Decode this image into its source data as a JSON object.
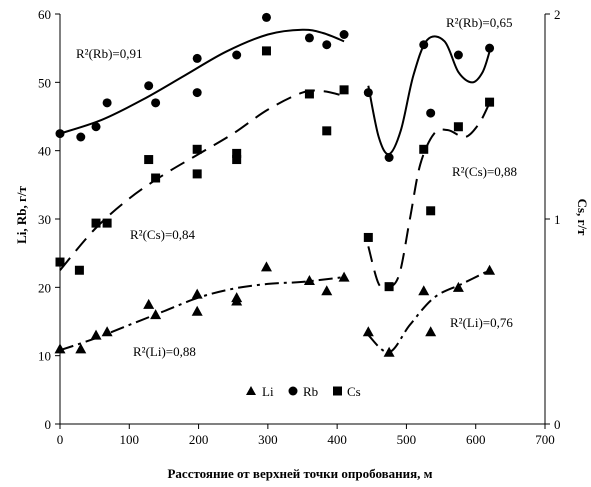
{
  "chart_data": {
    "type": "scatter",
    "xlabel": "Расстояние от верхней точки опробования, м",
    "ylabel_left": "Li, Rb, г/т",
    "ylabel_right": "Cs, г/т",
    "xlim": [
      0,
      700
    ],
    "ylim_left": [
      0,
      60
    ],
    "ylim_right": [
      0,
      2
    ],
    "x_ticks": [
      "0",
      "100",
      "200",
      "300",
      "400",
      "500",
      "600",
      "700"
    ],
    "y_left_ticks": [
      "0",
      "10",
      "20",
      "30",
      "40",
      "50",
      "60"
    ],
    "y_right_ticks": [
      "0",
      "1",
      "2"
    ],
    "grid": false,
    "legend_position": "bottom",
    "series": [
      {
        "name": "Li",
        "marker": "triangle",
        "axis": "left",
        "points": [
          [
            0,
            11
          ],
          [
            30,
            11
          ],
          [
            52,
            13
          ],
          [
            68,
            13.5
          ],
          [
            128,
            17.5
          ],
          [
            138,
            16
          ],
          [
            198,
            19
          ],
          [
            198,
            16.5
          ],
          [
            255,
            18.5
          ],
          [
            255,
            18
          ],
          [
            298,
            23
          ],
          [
            360,
            21
          ],
          [
            385,
            19.5
          ],
          [
            410,
            21.5
          ],
          [
            445,
            13.5
          ],
          [
            475,
            10.5
          ],
          [
            525,
            19.5
          ],
          [
            535,
            13.5
          ],
          [
            575,
            20
          ],
          [
            620,
            22.5
          ]
        ]
      },
      {
        "name": "Rb",
        "marker": "circle",
        "axis": "left",
        "points": [
          [
            0,
            42.5
          ],
          [
            30,
            42
          ],
          [
            52,
            43.5
          ],
          [
            68,
            47
          ],
          [
            128,
            49.5
          ],
          [
            138,
            47
          ],
          [
            198,
            53.5
          ],
          [
            198,
            48.5
          ],
          [
            255,
            54
          ],
          [
            298,
            59.5
          ],
          [
            360,
            56.5
          ],
          [
            385,
            55.5
          ],
          [
            410,
            57
          ],
          [
            445,
            48.5
          ],
          [
            475,
            39
          ],
          [
            525,
            55.5
          ],
          [
            535,
            45.5
          ],
          [
            575,
            54
          ],
          [
            620,
            55
          ]
        ]
      },
      {
        "name": "Cs",
        "marker": "square",
        "axis": "right",
        "points": [
          [
            0,
            0.79
          ],
          [
            28,
            0.75
          ],
          [
            52,
            0.98
          ],
          [
            68,
            0.98
          ],
          [
            128,
            1.29
          ],
          [
            138,
            1.2
          ],
          [
            198,
            1.34
          ],
          [
            198,
            1.22
          ],
          [
            255,
            1.32
          ],
          [
            255,
            1.29
          ],
          [
            298,
            1.82
          ],
          [
            360,
            1.61
          ],
          [
            385,
            1.43
          ],
          [
            410,
            1.63
          ],
          [
            445,
            0.91
          ],
          [
            475,
            0.67
          ],
          [
            525,
            1.34
          ],
          [
            535,
            1.04
          ],
          [
            575,
            1.45
          ],
          [
            620,
            1.57
          ]
        ]
      }
    ],
    "trendlines": [
      {
        "series": "Rb",
        "style": "solid",
        "r2_label": "R²(Rb)=0,91",
        "points": [
          [
            0,
            42.5
          ],
          [
            60,
            44.5
          ],
          [
            120,
            47.5
          ],
          [
            180,
            51
          ],
          [
            240,
            54.5
          ],
          [
            300,
            57
          ],
          [
            350,
            57.7
          ],
          [
            380,
            57.2
          ],
          [
            410,
            56
          ]
        ]
      },
      {
        "series": "Rb",
        "style": "solid",
        "r2_label": "R²(Rb)=0,65",
        "points": [
          [
            445,
            49.5
          ],
          [
            460,
            42
          ],
          [
            475,
            39.5
          ],
          [
            492,
            43
          ],
          [
            510,
            51
          ],
          [
            530,
            56.2
          ],
          [
            555,
            56
          ],
          [
            575,
            51.5
          ],
          [
            595,
            50
          ],
          [
            610,
            51.5
          ],
          [
            620,
            54.5
          ]
        ]
      },
      {
        "series": "Cs",
        "style": "long-dash",
        "r2_label": "R²(Cs)=0,84",
        "points": [
          [
            0,
            22.5
          ],
          [
            50,
            28.5
          ],
          [
            100,
            33
          ],
          [
            150,
            36.5
          ],
          [
            200,
            39.5
          ],
          [
            250,
            42.5
          ],
          [
            300,
            46
          ],
          [
            350,
            48.5
          ],
          [
            380,
            48.7
          ],
          [
            410,
            48
          ]
        ]
      },
      {
        "series": "Cs",
        "style": "long-dash",
        "r2_label": "R²(Cs)=0,88",
        "points": [
          [
            445,
            26
          ],
          [
            460,
            20.5
          ],
          [
            475,
            20
          ],
          [
            490,
            22
          ],
          [
            505,
            30
          ],
          [
            520,
            38
          ],
          [
            540,
            42.5
          ],
          [
            560,
            43
          ],
          [
            585,
            42
          ],
          [
            605,
            44
          ],
          [
            620,
            47
          ]
        ]
      },
      {
        "series": "Li",
        "style": "dash-dot",
        "r2_label": "R²(Li)=0,88",
        "points": [
          [
            0,
            10.8
          ],
          [
            50,
            12.5
          ],
          [
            100,
            14.5
          ],
          [
            150,
            16.5
          ],
          [
            200,
            18.5
          ],
          [
            250,
            19.8
          ],
          [
            300,
            20.5
          ],
          [
            350,
            20.8
          ],
          [
            410,
            21.5
          ]
        ]
      },
      {
        "series": "Li",
        "style": "dash-dot",
        "r2_label": "R²(Li)=0,76",
        "points": [
          [
            445,
            13
          ],
          [
            475,
            10.5
          ],
          [
            505,
            14.5
          ],
          [
            540,
            18.5
          ],
          [
            580,
            20.5
          ],
          [
            620,
            22.5
          ]
        ]
      }
    ],
    "annotations": [
      {
        "text": "R²(Rb)=0,91"
      },
      {
        "text": "R²(Rb)=0,65"
      },
      {
        "text": "R²(Cs)=0,84"
      },
      {
        "text": "R²(Cs)=0,88"
      },
      {
        "text": "R²(Li)=0,88"
      },
      {
        "text": "R²(Li)=0,76"
      }
    ]
  }
}
